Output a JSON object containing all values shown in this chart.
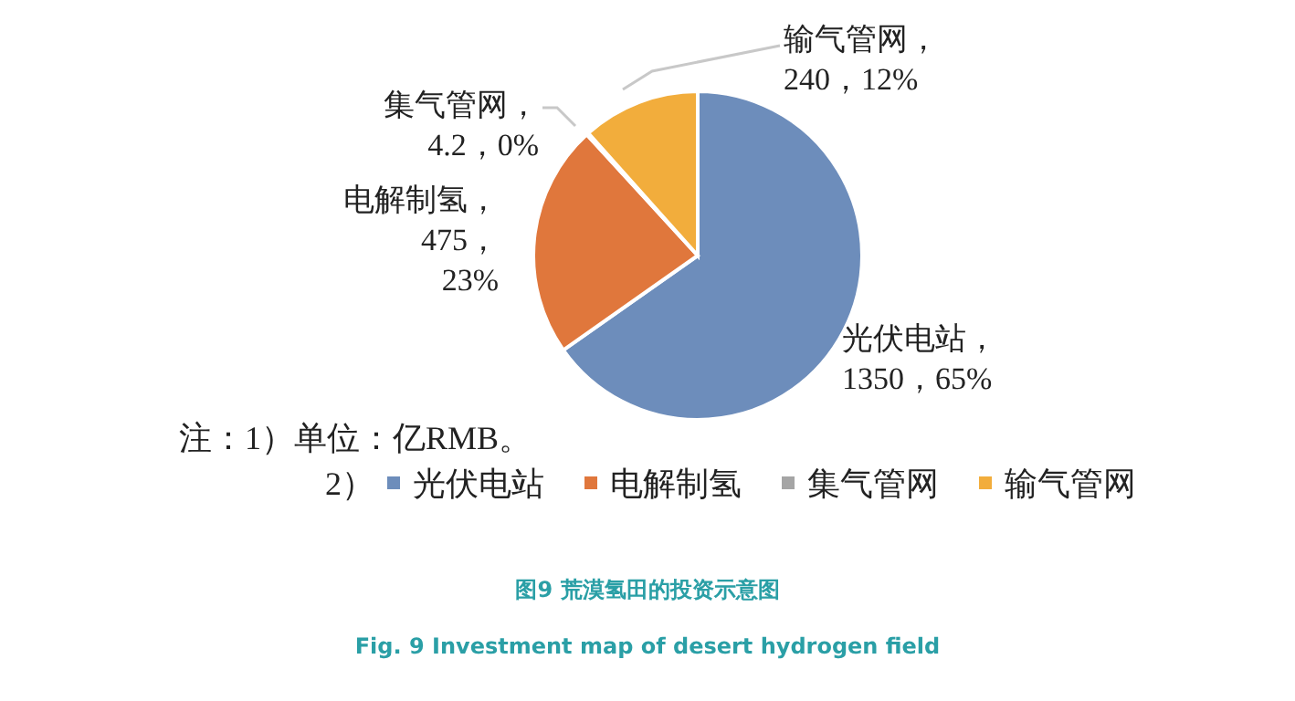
{
  "chart_data": {
    "type": "pie",
    "title": "图9 荒漠氢田的投资示意图",
    "subtitle": "Fig. 9 Investment map of desert hydrogen field",
    "categories": [
      "光伏电站",
      "电解制氢",
      "集气管网",
      "输气管网"
    ],
    "values": [
      1350,
      475,
      4.2,
      240
    ],
    "colors": [
      "#6d8dbb",
      "#e0773c",
      "#a5a5a5",
      "#f2ad3c"
    ],
    "value_labels": [
      "光伏电站，\n1350，65%",
      "电解制氢，\n475，\n23%",
      "集气管网，\n4.2，0%",
      "输气管网，\n240，12%"
    ],
    "legend": "bottom",
    "legend_title": "2）",
    "annotations": [
      "注：1）单位：亿RMB。"
    ]
  }
}
